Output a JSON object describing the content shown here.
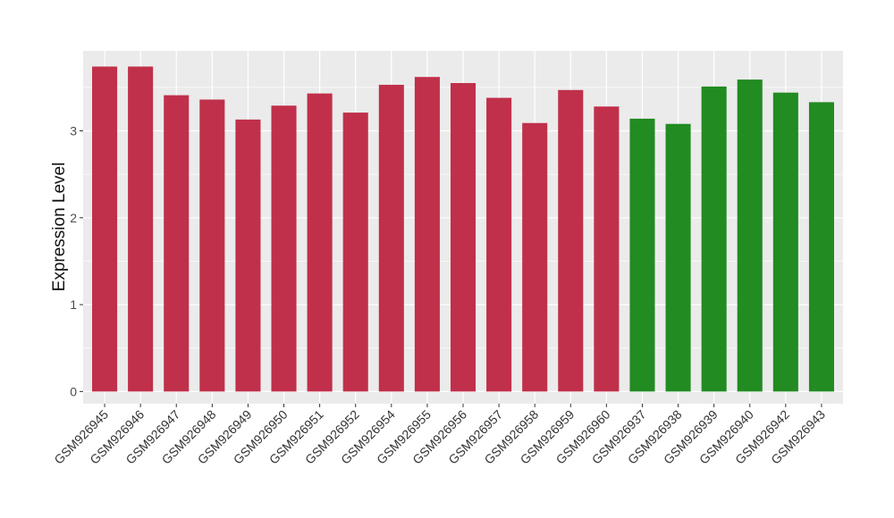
{
  "chart_data": {
    "type": "bar",
    "title": "",
    "xlabel": "",
    "ylabel": "Expression Level",
    "ylim": [
      -0.14,
      3.92
    ],
    "yticks": [
      0,
      1,
      2,
      3
    ],
    "grid": true,
    "legend": "none",
    "colors": {
      "group_a": "#C0304A",
      "group_b": "#228B22",
      "panel": "#EBEBEB",
      "grid": "#FFFFFF"
    },
    "categories": [
      "GSM926945",
      "GSM926946",
      "GSM926947",
      "GSM926948",
      "GSM926949",
      "GSM926950",
      "GSM926951",
      "GSM926952",
      "GSM926954",
      "GSM926955",
      "GSM926956",
      "GSM926957",
      "GSM926958",
      "GSM926959",
      "GSM926960",
      "GSM926937",
      "GSM926938",
      "GSM926939",
      "GSM926940",
      "GSM926942",
      "GSM926943"
    ],
    "values": [
      3.74,
      3.74,
      3.41,
      3.36,
      3.13,
      3.29,
      3.43,
      3.21,
      3.53,
      3.62,
      3.55,
      3.38,
      3.09,
      3.47,
      3.28,
      3.14,
      3.08,
      3.51,
      3.59,
      3.44,
      3.33
    ],
    "groups": [
      "a",
      "a",
      "a",
      "a",
      "a",
      "a",
      "a",
      "a",
      "a",
      "a",
      "a",
      "a",
      "a",
      "a",
      "a",
      "b",
      "b",
      "b",
      "b",
      "b",
      "b"
    ]
  }
}
